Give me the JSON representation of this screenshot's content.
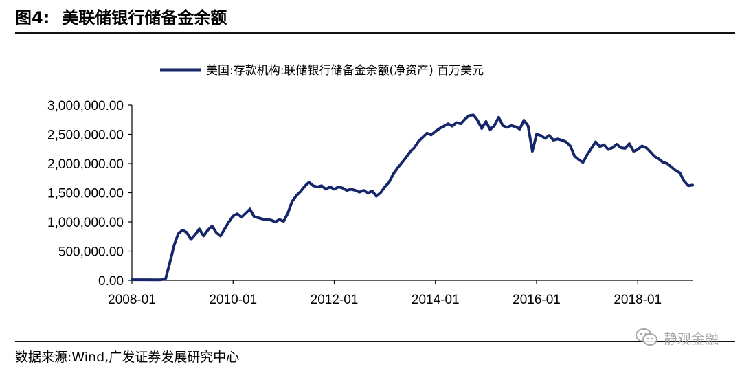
{
  "header": {
    "figure_number": "图4:",
    "title": "美联储银行储备金余额"
  },
  "source": "数据来源:Wind,广发证券发展研究中心",
  "watermark": {
    "text": "静观金融",
    "icon": "wechat-icon"
  },
  "colors": {
    "series": "#15276a",
    "axis": "#000000"
  },
  "chart_data": {
    "type": "line",
    "title": "",
    "xlabel": "",
    "ylabel": "",
    "legend": "top-center",
    "grid": false,
    "ylim": [
      0,
      3000000
    ],
    "yticks": [
      0,
      500000,
      1000000,
      1500000,
      2000000,
      2500000,
      3000000
    ],
    "ytick_labels": [
      "0.00",
      "500,000.00",
      "1,000,000.00",
      "1,500,000.00",
      "2,000,000.00",
      "2,500,000.00",
      "3,000,000.00"
    ],
    "xlim": [
      "2008-01",
      "2019-02"
    ],
    "xtick_labels": [
      "2008-01",
      "2010-01",
      "2012-01",
      "2014-01",
      "2016-01",
      "2018-01"
    ],
    "series": [
      {
        "name": "美国:存款机构:联储银行储备金余额(净资产) 百万美元",
        "points": [
          [
            "2008-01",
            10000
          ],
          [
            "2008-04",
            10000
          ],
          [
            "2008-07",
            8000
          ],
          [
            "2008-08",
            10000
          ],
          [
            "2008-09",
            30000
          ],
          [
            "2008-10",
            300000
          ],
          [
            "2008-11",
            600000
          ],
          [
            "2008-12",
            800000
          ],
          [
            "2009-01",
            860000
          ],
          [
            "2009-02",
            820000
          ],
          [
            "2009-03",
            700000
          ],
          [
            "2009-04",
            780000
          ],
          [
            "2009-05",
            880000
          ],
          [
            "2009-06",
            760000
          ],
          [
            "2009-07",
            860000
          ],
          [
            "2009-08",
            930000
          ],
          [
            "2009-09",
            820000
          ],
          [
            "2009-10",
            760000
          ],
          [
            "2009-11",
            880000
          ],
          [
            "2009-12",
            1000000
          ],
          [
            "2010-01",
            1100000
          ],
          [
            "2010-02",
            1140000
          ],
          [
            "2010-03",
            1080000
          ],
          [
            "2010-04",
            1150000
          ],
          [
            "2010-05",
            1220000
          ],
          [
            "2010-06",
            1090000
          ],
          [
            "2010-07",
            1070000
          ],
          [
            "2010-08",
            1050000
          ],
          [
            "2010-09",
            1040000
          ],
          [
            "2010-10",
            1030000
          ],
          [
            "2010-11",
            1000000
          ],
          [
            "2010-12",
            1040000
          ],
          [
            "2011-01",
            1010000
          ],
          [
            "2011-02",
            1150000
          ],
          [
            "2011-03",
            1350000
          ],
          [
            "2011-04",
            1450000
          ],
          [
            "2011-05",
            1520000
          ],
          [
            "2011-06",
            1610000
          ],
          [
            "2011-07",
            1680000
          ],
          [
            "2011-08",
            1620000
          ],
          [
            "2011-09",
            1600000
          ],
          [
            "2011-10",
            1620000
          ],
          [
            "2011-11",
            1560000
          ],
          [
            "2011-12",
            1600000
          ],
          [
            "2012-01",
            1560000
          ],
          [
            "2012-02",
            1600000
          ],
          [
            "2012-03",
            1580000
          ],
          [
            "2012-04",
            1540000
          ],
          [
            "2012-05",
            1560000
          ],
          [
            "2012-06",
            1540000
          ],
          [
            "2012-07",
            1510000
          ],
          [
            "2012-08",
            1540000
          ],
          [
            "2012-09",
            1490000
          ],
          [
            "2012-10",
            1530000
          ],
          [
            "2012-11",
            1440000
          ],
          [
            "2012-12",
            1500000
          ],
          [
            "2013-01",
            1600000
          ],
          [
            "2013-02",
            1680000
          ],
          [
            "2013-03",
            1820000
          ],
          [
            "2013-04",
            1920000
          ],
          [
            "2013-05",
            2010000
          ],
          [
            "2013-06",
            2100000
          ],
          [
            "2013-07",
            2200000
          ],
          [
            "2013-08",
            2270000
          ],
          [
            "2013-09",
            2380000
          ],
          [
            "2013-10",
            2450000
          ],
          [
            "2013-11",
            2520000
          ],
          [
            "2013-12",
            2490000
          ],
          [
            "2014-01",
            2550000
          ],
          [
            "2014-02",
            2600000
          ],
          [
            "2014-03",
            2640000
          ],
          [
            "2014-04",
            2680000
          ],
          [
            "2014-05",
            2640000
          ],
          [
            "2014-06",
            2700000
          ],
          [
            "2014-07",
            2680000
          ],
          [
            "2014-08",
            2760000
          ],
          [
            "2014-09",
            2820000
          ],
          [
            "2014-10",
            2830000
          ],
          [
            "2014-11",
            2740000
          ],
          [
            "2014-12",
            2600000
          ],
          [
            "2015-01",
            2720000
          ],
          [
            "2015-02",
            2580000
          ],
          [
            "2015-03",
            2650000
          ],
          [
            "2015-04",
            2790000
          ],
          [
            "2015-05",
            2650000
          ],
          [
            "2015-06",
            2620000
          ],
          [
            "2015-07",
            2650000
          ],
          [
            "2015-08",
            2630000
          ],
          [
            "2015-09",
            2590000
          ],
          [
            "2015-10",
            2740000
          ],
          [
            "2015-11",
            2640000
          ],
          [
            "2015-12",
            2210000
          ],
          [
            "2016-01",
            2500000
          ],
          [
            "2016-02",
            2480000
          ],
          [
            "2016-03",
            2430000
          ],
          [
            "2016-04",
            2480000
          ],
          [
            "2016-05",
            2400000
          ],
          [
            "2016-06",
            2420000
          ],
          [
            "2016-07",
            2400000
          ],
          [
            "2016-08",
            2370000
          ],
          [
            "2016-09",
            2300000
          ],
          [
            "2016-10",
            2130000
          ],
          [
            "2016-11",
            2070000
          ],
          [
            "2016-12",
            2020000
          ],
          [
            "2017-01",
            2150000
          ],
          [
            "2017-02",
            2260000
          ],
          [
            "2017-03",
            2370000
          ],
          [
            "2017-04",
            2290000
          ],
          [
            "2017-05",
            2320000
          ],
          [
            "2017-06",
            2240000
          ],
          [
            "2017-07",
            2270000
          ],
          [
            "2017-08",
            2330000
          ],
          [
            "2017-09",
            2270000
          ],
          [
            "2017-10",
            2260000
          ],
          [
            "2017-11",
            2340000
          ],
          [
            "2017-12",
            2210000
          ],
          [
            "2018-01",
            2240000
          ],
          [
            "2018-02",
            2300000
          ],
          [
            "2018-03",
            2270000
          ],
          [
            "2018-04",
            2200000
          ],
          [
            "2018-05",
            2120000
          ],
          [
            "2018-06",
            2080000
          ],
          [
            "2018-07",
            2020000
          ],
          [
            "2018-08",
            2000000
          ],
          [
            "2018-09",
            1940000
          ],
          [
            "2018-10",
            1880000
          ],
          [
            "2018-11",
            1840000
          ],
          [
            "2018-12",
            1700000
          ],
          [
            "2019-01",
            1620000
          ],
          [
            "2019-02",
            1630000
          ]
        ]
      }
    ]
  }
}
